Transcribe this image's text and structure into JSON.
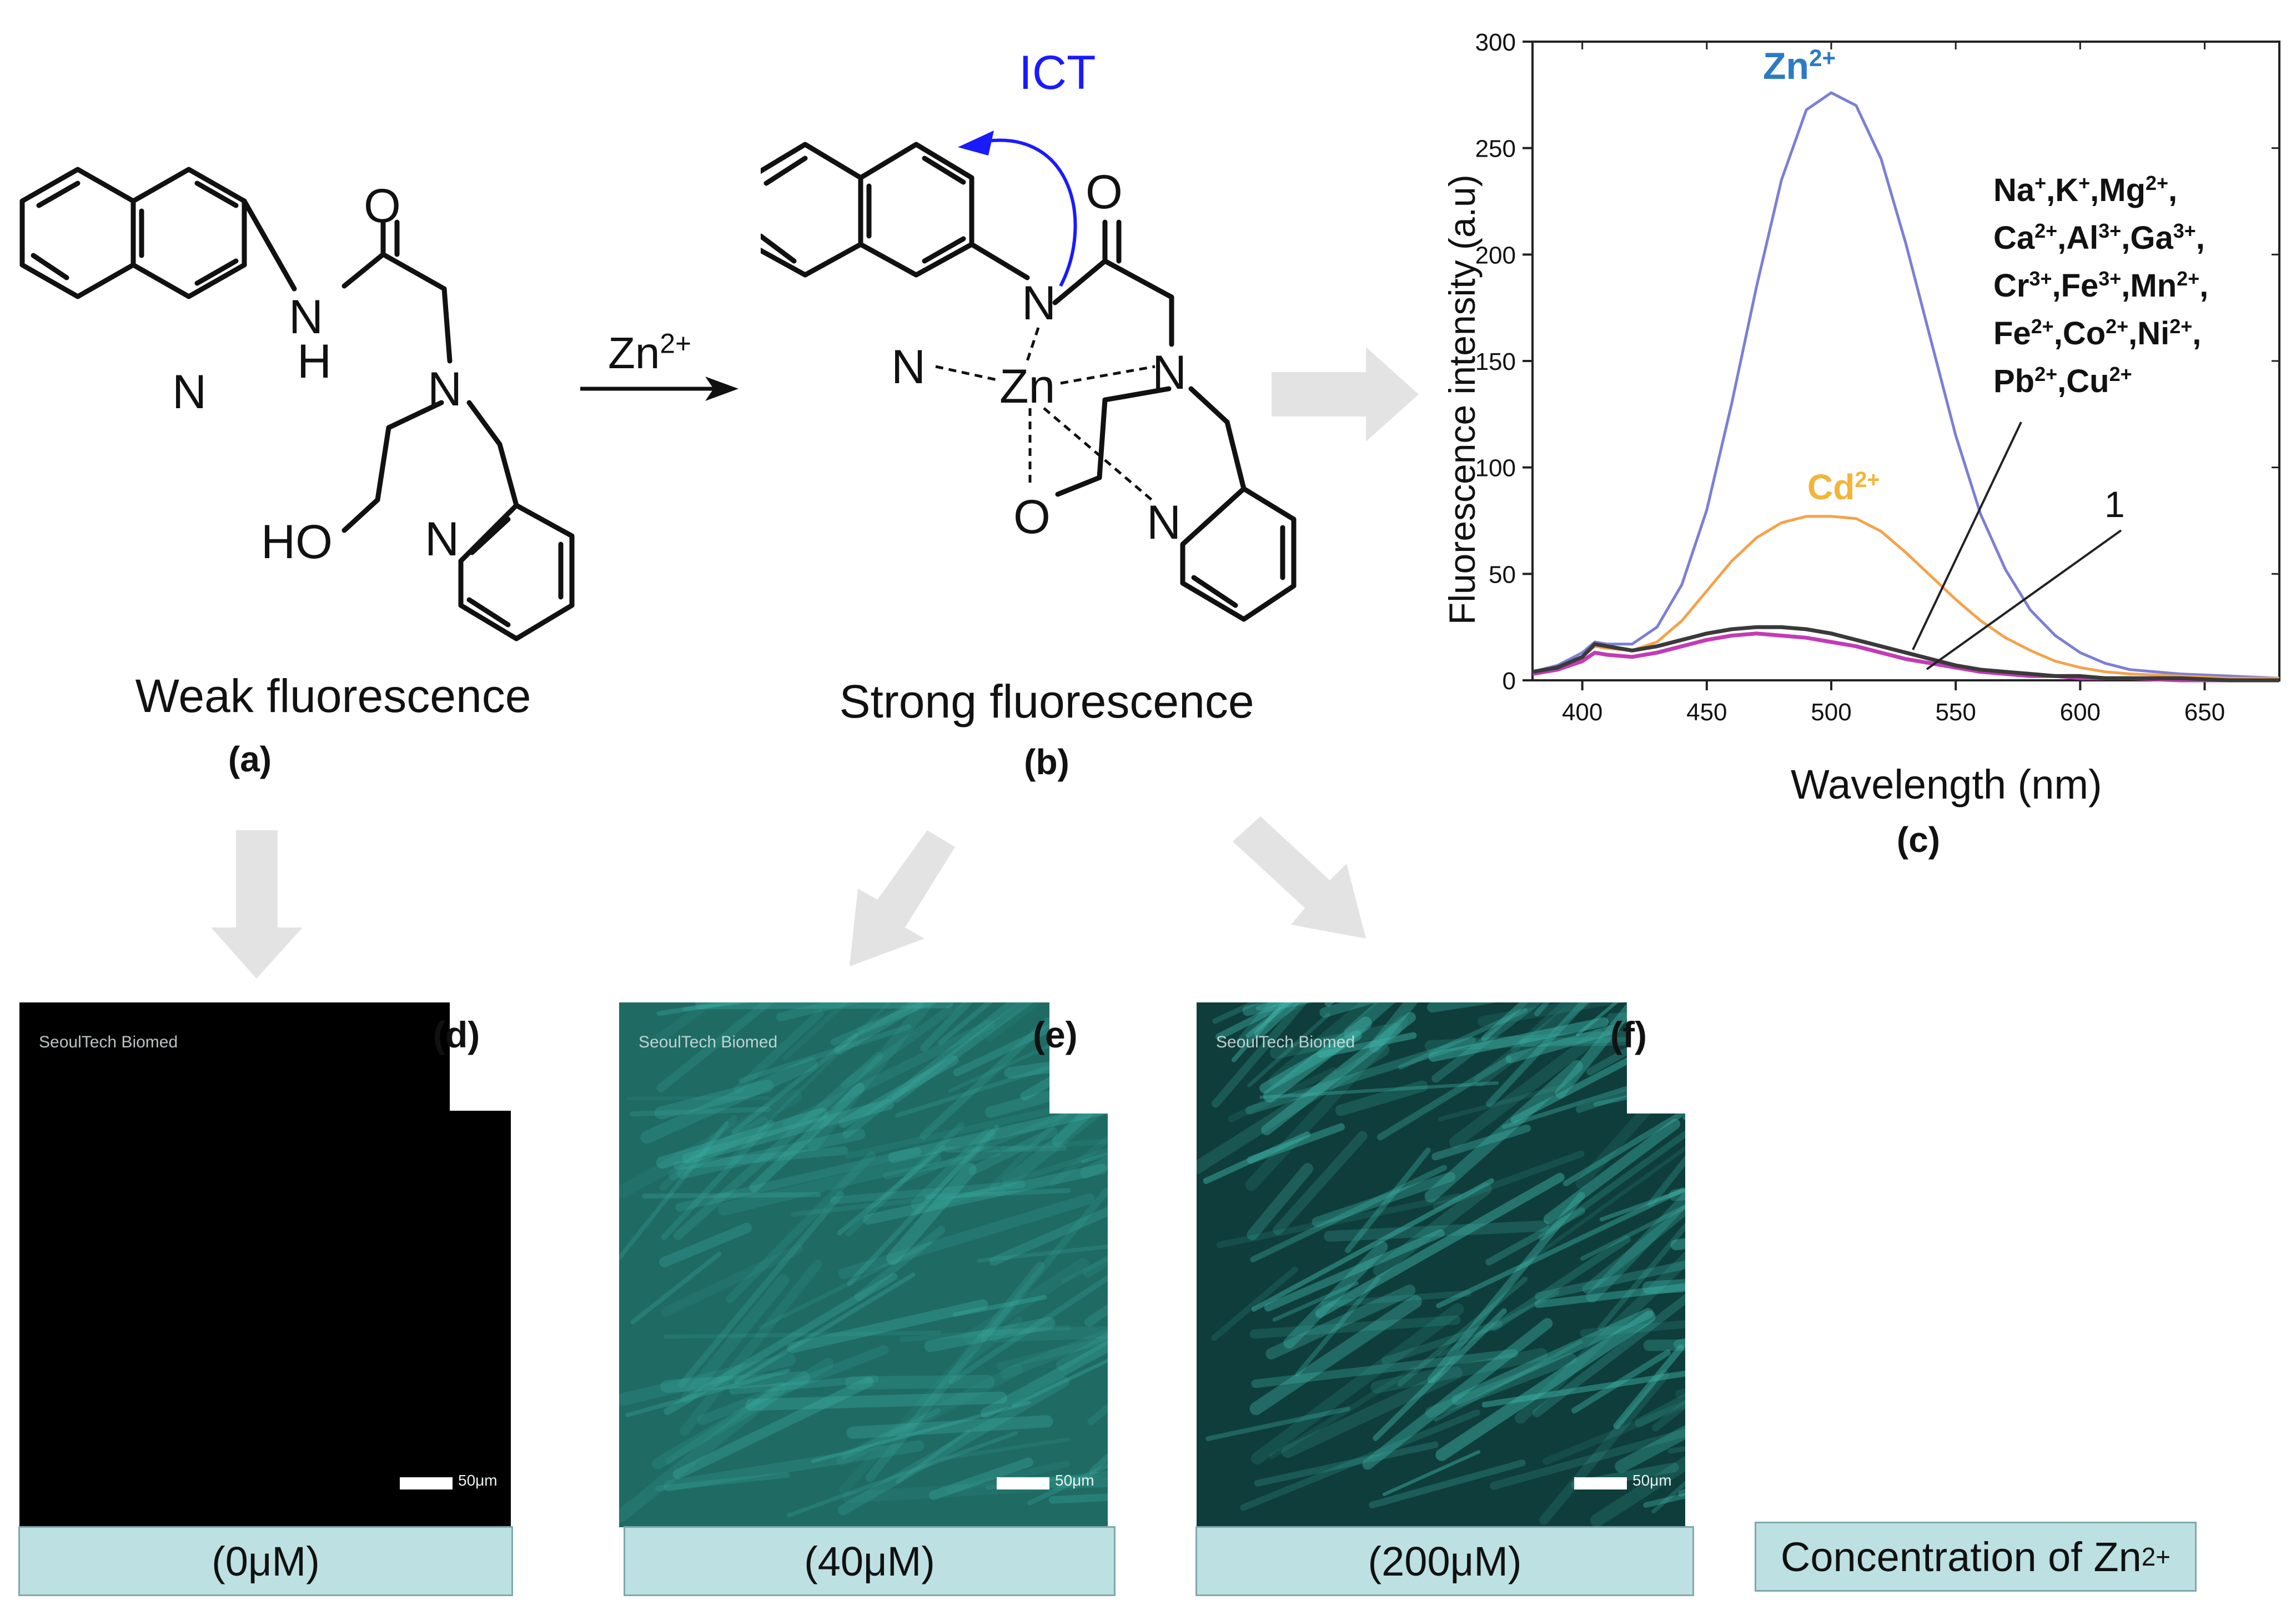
{
  "panel_a": {
    "caption": "Weak fluorescence",
    "tag": "(a)",
    "atoms": {
      "amide_N": "N",
      "amide_H": "H",
      "carbonyl_O": "O",
      "amine_N": "N",
      "quinoline_N": "N",
      "hydroxyl": "HO",
      "pyridine_N": "N"
    }
  },
  "reaction": {
    "reagent": "Zn",
    "reagent_charge": "2+"
  },
  "panel_b": {
    "caption": "Strong fluorescence",
    "tag": "(b)",
    "ict_label": "ICT",
    "atoms": {
      "amide_N": "N",
      "carbonyl_O": "O",
      "amine_N": "N",
      "quinoline_N": "N",
      "metal": "Zn",
      "hydroxyl_O": "O",
      "pyridine_N": "N"
    }
  },
  "panel_c": {
    "tag": "(c)"
  },
  "chart_data": {
    "type": "line",
    "title": "",
    "xlabel": "Wavelength (nm)",
    "ylabel": "Fluorescence intensity (a.u)",
    "xlim": [
      380,
      680
    ],
    "ylim": [
      0,
      300
    ],
    "xticks": [
      400,
      450,
      500,
      550,
      600,
      650
    ],
    "yticks": [
      0,
      50,
      100,
      150,
      200,
      250,
      300
    ],
    "x": [
      380,
      390,
      400,
      405,
      410,
      420,
      430,
      440,
      450,
      460,
      470,
      480,
      490,
      500,
      510,
      520,
      530,
      540,
      550,
      560,
      570,
      580,
      590,
      600,
      610,
      620,
      640,
      660,
      680
    ],
    "series": [
      {
        "name": "Zn",
        "charge": "2+",
        "color": "#7b7fd4",
        "values": [
          4,
          7,
          13,
          18,
          17,
          17,
          25,
          45,
          80,
          130,
          185,
          235,
          268,
          276,
          270,
          245,
          205,
          160,
          115,
          78,
          52,
          33,
          21,
          13,
          8,
          5,
          3,
          2,
          1
        ]
      },
      {
        "name": "Cd",
        "charge": "2+",
        "color": "#f5a24b",
        "values": [
          4,
          6,
          11,
          16,
          15,
          14,
          18,
          28,
          42,
          56,
          67,
          74,
          77,
          77,
          76,
          70,
          60,
          49,
          38,
          28,
          20,
          14,
          9,
          6,
          4,
          3,
          2,
          1,
          1
        ]
      },
      {
        "name": "1",
        "color": "#c23bb5",
        "values": [
          3,
          5,
          9,
          13,
          12,
          11,
          13,
          16,
          19,
          21,
          22,
          21,
          20,
          18,
          16,
          13,
          10,
          8,
          6,
          4,
          3,
          2,
          2,
          1,
          1,
          1,
          0,
          0,
          0
        ]
      },
      {
        "name": "other ions",
        "color": "#3a3a3a",
        "values": [
          4,
          6,
          11,
          17,
          16,
          14,
          16,
          19,
          22,
          24,
          25,
          25,
          24,
          22,
          19,
          16,
          13,
          10,
          7,
          5,
          4,
          3,
          2,
          2,
          1,
          1,
          1,
          0,
          0
        ]
      }
    ],
    "annotations": {
      "zn_label": "Zn",
      "zn_charge": "2+",
      "cd_label": "Cd",
      "cd_charge": "2+",
      "probe_label": "1",
      "ions": [
        [
          [
            "Na",
            "+"
          ],
          [
            "K",
            "+"
          ],
          [
            "Mg",
            "2+"
          ]
        ],
        [
          [
            "Ca",
            "2+"
          ],
          [
            "Al",
            "3+"
          ],
          [
            "Ga",
            "3+"
          ]
        ],
        [
          [
            "Cr",
            "3+"
          ],
          [
            "Fe",
            "3+"
          ],
          [
            "Mn",
            "2+"
          ]
        ],
        [
          [
            "Fe",
            "2+"
          ],
          [
            "Co",
            "2+"
          ],
          [
            "Ni",
            "2+"
          ]
        ],
        [
          [
            "Pb",
            "2+"
          ],
          [
            "Cu",
            "2+"
          ]
        ]
      ]
    }
  },
  "images": [
    {
      "tag": "(d)",
      "watermark": "SeoulTech Biomed",
      "scale": "50μm",
      "concentration": "(0μM)",
      "intensity": 0
    },
    {
      "tag": "(e)",
      "watermark": "SeoulTech Biomed",
      "scale": "50μm",
      "concentration": "(40μM)",
      "intensity": 0.55
    },
    {
      "tag": "(f)",
      "watermark": "SeoulTech Biomed",
      "scale": "50μm",
      "concentration": "(200μM)",
      "intensity": 0.8
    }
  ],
  "legend_box": {
    "text": "Concentration of Zn",
    "charge": "2+"
  },
  "colors": {
    "arrow_gray": "#e3e3e3",
    "ict_blue": "#1a1aff",
    "zn_label_blue": "#2a7bc4",
    "cd_label_orange": "#f2b53a",
    "caption_fill": "#bde0e2",
    "cell_cyan": "#3fb5aa"
  }
}
